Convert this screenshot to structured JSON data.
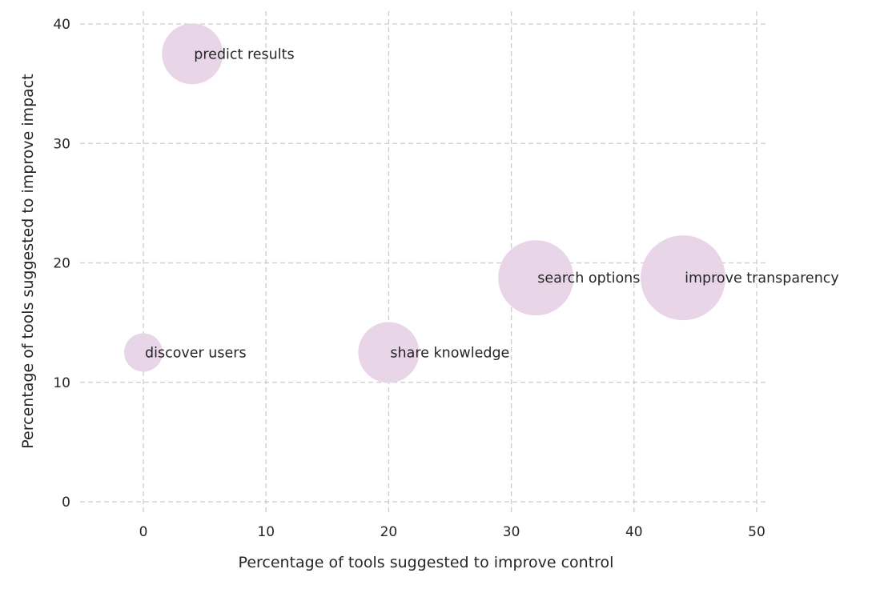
{
  "chart_data": {
    "type": "scatter",
    "xlabel": "Percentage of tools suggested to improve control",
    "ylabel": "Percentage of tools suggested to improve impact",
    "xlim": [
      -5,
      51
    ],
    "ylim": [
      -1,
      41
    ],
    "x_ticks": [
      0,
      10,
      20,
      30,
      40,
      50
    ],
    "y_ticks": [
      0,
      10,
      20,
      30,
      40
    ],
    "grid": true,
    "bubble_color": "#e8d5e8",
    "points": [
      {
        "label": "predict results",
        "x": 4,
        "y": 37.5,
        "size": 2
      },
      {
        "label": "discover users",
        "x": 0,
        "y": 12.5,
        "size": 1
      },
      {
        "label": "share knowledge",
        "x": 20,
        "y": 12.5,
        "size": 2
      },
      {
        "label": "search options",
        "x": 32,
        "y": 18.75,
        "size": 3
      },
      {
        "label": "improve transparency",
        "x": 44,
        "y": 18.75,
        "size": 4
      }
    ]
  }
}
